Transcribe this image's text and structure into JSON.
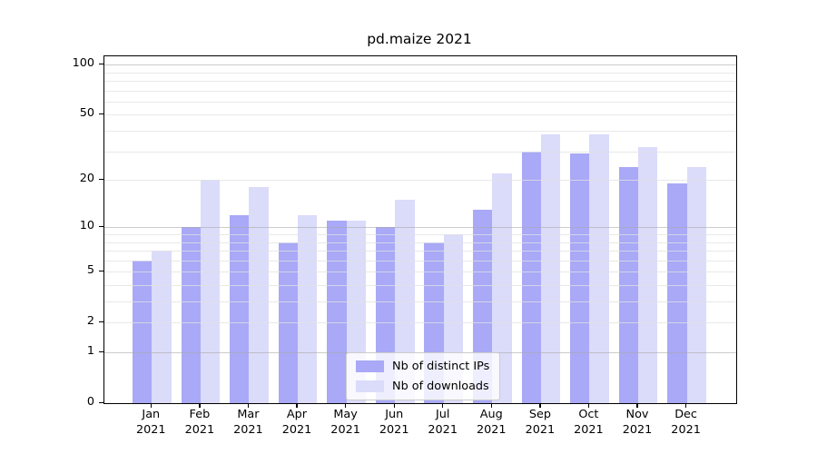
{
  "chart_data": {
    "type": "bar",
    "title": "pd.maize 2021",
    "year": "2021",
    "categories": [
      "Jan",
      "Feb",
      "Mar",
      "Apr",
      "May",
      "Jun",
      "Jul",
      "Aug",
      "Sep",
      "Oct",
      "Nov",
      "Dec"
    ],
    "series": [
      {
        "name": "Nb of distinct IPs",
        "color": "#a9a9f7",
        "values": [
          6,
          10,
          12,
          8,
          11,
          10,
          8,
          13,
          30,
          29,
          24,
          19
        ]
      },
      {
        "name": "Nb of downloads",
        "color": "#dbdbfa",
        "values": [
          7,
          20,
          18,
          12,
          11,
          15,
          9,
          22,
          38,
          38,
          32,
          24
        ]
      }
    ],
    "xlabel": "",
    "ylabel": "",
    "scale": "log1p",
    "ylim": [
      0,
      112
    ],
    "y_ticks": [
      0,
      1,
      2,
      5,
      10,
      20,
      50,
      100
    ],
    "major_gridlines": [
      1,
      10,
      100
    ],
    "minor_gridlines": [
      2,
      3,
      4,
      5,
      6,
      7,
      8,
      9,
      20,
      30,
      40,
      50,
      60,
      70,
      80,
      90
    ],
    "grid": "on",
    "legend_position": "lower-center inside"
  }
}
